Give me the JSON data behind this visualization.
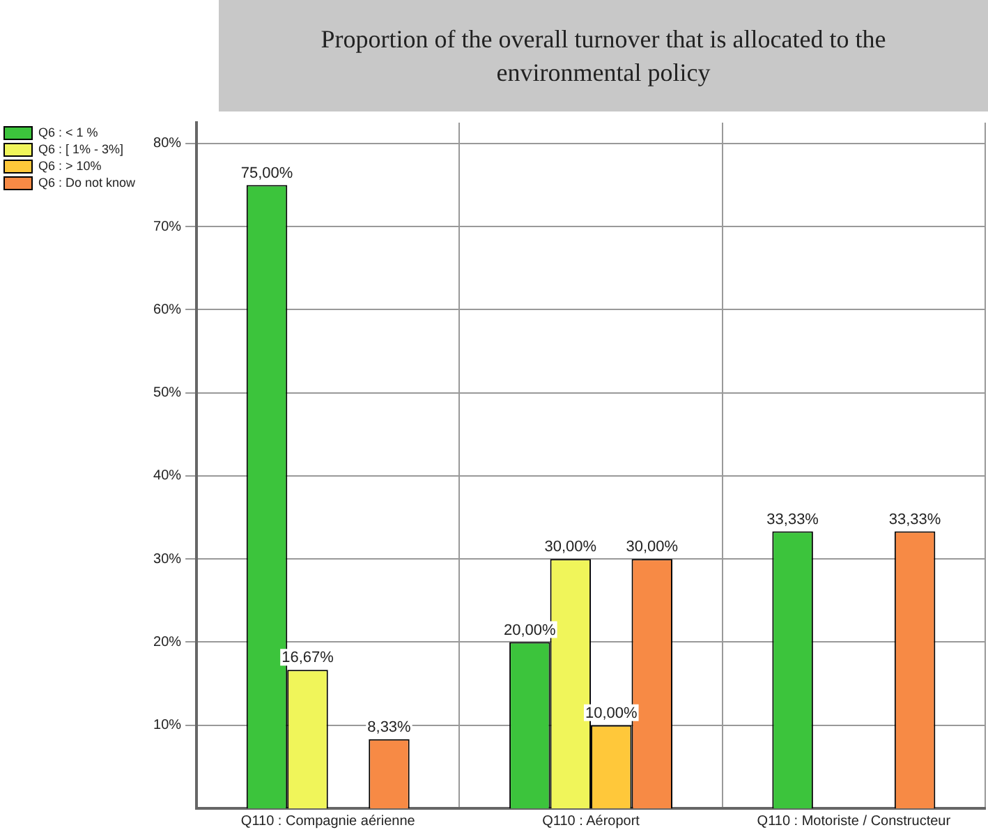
{
  "chart_data": {
    "type": "bar",
    "title": "Proportion of the overall turnover that is allocated to the environmental policy",
    "categories": [
      "Q110 : Compagnie aérienne",
      "Q110 : Aéroport",
      "Q110 : Motoriste / Constructeur"
    ],
    "series": [
      {
        "name": "Q6 : < 1 %",
        "color": "#3cc43c",
        "values": [
          75,
          20,
          33.33
        ],
        "value_labels": [
          "75,00%",
          "20,00%",
          "33,33%"
        ]
      },
      {
        "name": "Q6 : [ 1% - 3%]",
        "color": "#f0f55a",
        "values": [
          16.67,
          30,
          null
        ],
        "value_labels": [
          "16,67%",
          "30,00%",
          null
        ]
      },
      {
        "name": "Q6 : > 10%",
        "color": "#ffc83a",
        "values": [
          null,
          10,
          null
        ],
        "value_labels": [
          null,
          "10,00%",
          null
        ]
      },
      {
        "name": "Q6 : Do not know",
        "color": "#f78a45",
        "values": [
          8.33,
          30,
          33.33
        ],
        "value_labels": [
          "8,33%",
          "30,00%",
          "33,33%"
        ]
      }
    ],
    "ylim": [
      0,
      82.5
    ],
    "yticks": [
      {
        "value": 10,
        "label": "10%"
      },
      {
        "value": 20,
        "label": "20%"
      },
      {
        "value": 30,
        "label": "30%"
      },
      {
        "value": 40,
        "label": "40%"
      },
      {
        "value": 50,
        "label": "50%"
      },
      {
        "value": 60,
        "label": "60%"
      },
      {
        "value": 70,
        "label": "70%"
      },
      {
        "value": 80,
        "label": "80%"
      }
    ],
    "grid": true,
    "legend": "top left"
  }
}
